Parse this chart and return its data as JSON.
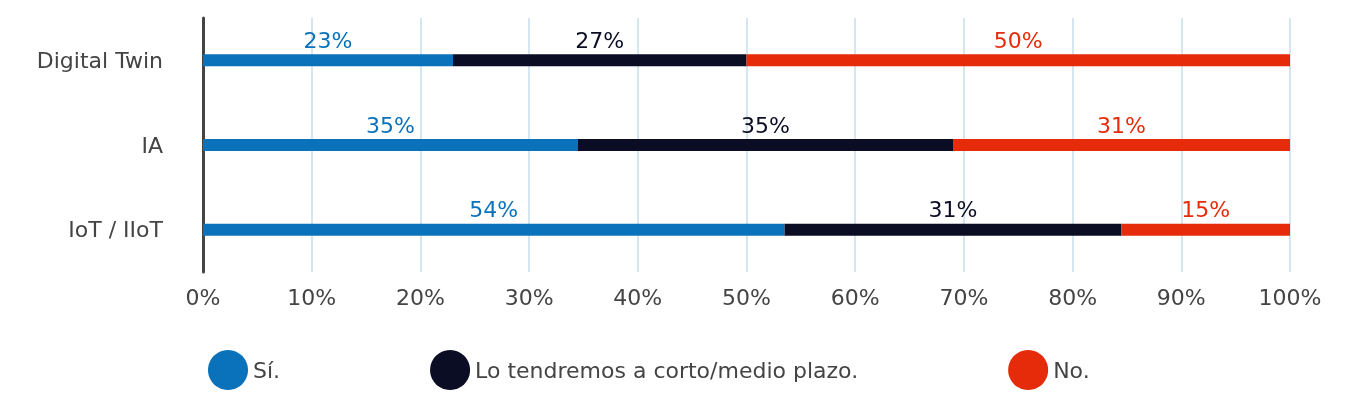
{
  "chart_data": {
    "type": "bar",
    "orientation": "horizontal",
    "stacked": true,
    "categories": [
      "Digital Twin",
      "IA",
      "IoT / IIoT"
    ],
    "series": [
      {
        "name": "Sí.",
        "color": "#0a72ba",
        "values": [
          23,
          34.5,
          53.5
        ],
        "value_labels": [
          "23%",
          "35%",
          "54%"
        ]
      },
      {
        "name": "Lo tendremos a corto/medio plazo.",
        "color": "#0b0d24",
        "values": [
          27,
          34.5,
          31
        ],
        "value_labels": [
          "27%",
          "35%",
          "31%"
        ]
      },
      {
        "name": "No.",
        "color": "#e52b0a",
        "values": [
          50,
          31,
          15.5
        ],
        "value_labels": [
          "50%",
          "31%",
          "15%"
        ]
      }
    ],
    "xlim": [
      0,
      100
    ],
    "xticks": [
      {
        "value": 0,
        "label": "0%"
      },
      {
        "value": 10,
        "label": "10%"
      },
      {
        "value": 20,
        "label": "20%"
      },
      {
        "value": 30,
        "label": "30%"
      },
      {
        "value": 40,
        "label": "40%"
      },
      {
        "value": 50,
        "label": "50%"
      },
      {
        "value": 60,
        "label": "60%"
      },
      {
        "value": 70,
        "label": "70%"
      },
      {
        "value": 80,
        "label": "80%"
      },
      {
        "value": 90,
        "label": "90%"
      },
      {
        "value": 100,
        "label": "100%"
      }
    ],
    "grid": "x",
    "legend": "bottom"
  }
}
